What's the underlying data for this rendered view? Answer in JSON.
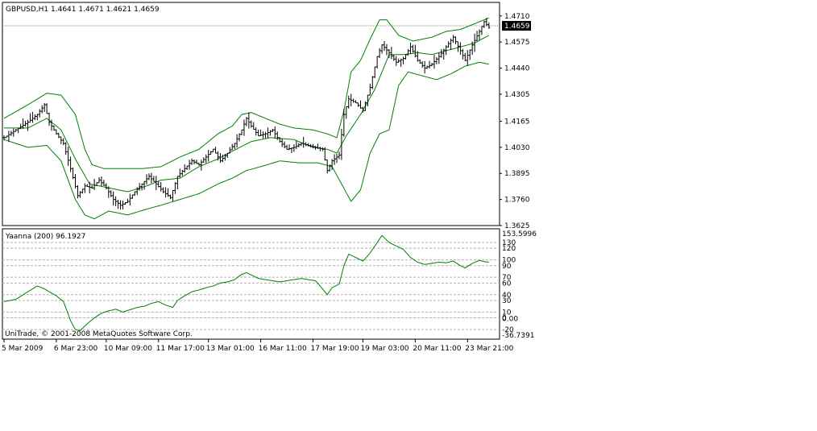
{
  "colors": {
    "background": "#ffffff",
    "bars": "#000000",
    "bollinger": "#008000",
    "indicator": "#008000",
    "grid_dotted": "#b0b0b0",
    "bid_line": "#909090",
    "price_tag_bg": "#000000",
    "price_tag_text": "#ffffff"
  },
  "header": {
    "main_info": "GBPUSD,H1  1.4641 1.4671 1.4621 1.4659",
    "indicator_info": "Yaanna (200) 96.1927",
    "copyright": "UniTrade, © 2001-2008 MetaQuotes Software Corp."
  },
  "chart_data": [
    {
      "type": "line",
      "symbol": "GBPUSD",
      "timeframe": "H1",
      "ohlc": {
        "open": 1.4641,
        "high": 1.4671,
        "low": 1.4621,
        "close": 1.4659
      },
      "current_price": 1.4659,
      "current_price_label": "1.4659",
      "ylim": [
        1.3625,
        1.478
      ],
      "y_tick_labels": [
        "1.4710",
        "1.4575",
        "1.4440",
        "1.4305",
        "1.4165",
        "1.4030",
        "1.3895",
        "1.3760",
        "1.3625"
      ],
      "y_tick_values": [
        1.471,
        1.4575,
        1.444,
        1.4305,
        1.4165,
        1.403,
        1.3895,
        1.376,
        1.3625
      ],
      "x_tick_labels": [
        "5 Mar 2009",
        "6 Mar 23:00",
        "10 Mar 09:00",
        "11 Mar 17:00",
        "13 Mar 01:00",
        "16 Mar 11:00",
        "17 Mar 19:00",
        "19 Mar 03:00",
        "20 Mar 11:00",
        "23 Mar 21:00"
      ],
      "price_anchors": [
        [
          0,
          1.408
        ],
        [
          5,
          1.412
        ],
        [
          10,
          1.416
        ],
        [
          14,
          1.42
        ],
        [
          17,
          1.425
        ],
        [
          19,
          1.416
        ],
        [
          22,
          1.41
        ],
        [
          25,
          1.405
        ],
        [
          28,
          1.392
        ],
        [
          31,
          1.378
        ],
        [
          34,
          1.383
        ],
        [
          37,
          1.382
        ],
        [
          40,
          1.386
        ],
        [
          43,
          1.382
        ],
        [
          46,
          1.376
        ],
        [
          49,
          1.373
        ],
        [
          52,
          1.375
        ],
        [
          55,
          1.38
        ],
        [
          58,
          1.384
        ],
        [
          61,
          1.388
        ],
        [
          64,
          1.384
        ],
        [
          67,
          1.38
        ],
        [
          70,
          1.377
        ],
        [
          73,
          1.388
        ],
        [
          76,
          1.392
        ],
        [
          79,
          1.396
        ],
        [
          82,
          1.394
        ],
        [
          85,
          1.398
        ],
        [
          88,
          1.402
        ],
        [
          91,
          1.396
        ],
        [
          94,
          1.4
        ],
        [
          97,
          1.405
        ],
        [
          100,
          1.412
        ],
        [
          102,
          1.418
        ],
        [
          104,
          1.414
        ],
        [
          107,
          1.409
        ],
        [
          110,
          1.41
        ],
        [
          113,
          1.412
        ],
        [
          116,
          1.406
        ],
        [
          119,
          1.402
        ],
        [
          122,
          1.403
        ],
        [
          125,
          1.405
        ],
        [
          128,
          1.404
        ],
        [
          131,
          1.403
        ],
        [
          134,
          1.402
        ],
        [
          136,
          1.391
        ],
        [
          138,
          1.396
        ],
        [
          141,
          1.399
        ],
        [
          143,
          1.42
        ],
        [
          145,
          1.428
        ],
        [
          148,
          1.426
        ],
        [
          151,
          1.422
        ],
        [
          154,
          1.434
        ],
        [
          157,
          1.45
        ],
        [
          159,
          1.456
        ],
        [
          162,
          1.452
        ],
        [
          165,
          1.447
        ],
        [
          168,
          1.449
        ],
        [
          171,
          1.455
        ],
        [
          174,
          1.448
        ],
        [
          177,
          1.444
        ],
        [
          180,
          1.446
        ],
        [
          183,
          1.45
        ],
        [
          186,
          1.455
        ],
        [
          189,
          1.46
        ],
        [
          192,
          1.453
        ],
        [
          194,
          1.448
        ],
        [
          197,
          1.456
        ],
        [
          200,
          1.463
        ],
        [
          202,
          1.468
        ],
        [
          204,
          1.465
        ]
      ],
      "bollinger": {
        "upper": [
          [
            0,
            1.418
          ],
          [
            10,
            1.425
          ],
          [
            18,
            1.431
          ],
          [
            24,
            1.43
          ],
          [
            30,
            1.42
          ],
          [
            34,
            1.402
          ],
          [
            37,
            1.394
          ],
          [
            42,
            1.392
          ],
          [
            50,
            1.392
          ],
          [
            58,
            1.392
          ],
          [
            66,
            1.393
          ],
          [
            74,
            1.398
          ],
          [
            82,
            1.402
          ],
          [
            90,
            1.41
          ],
          [
            96,
            1.414
          ],
          [
            100,
            1.42
          ],
          [
            104,
            1.421
          ],
          [
            110,
            1.418
          ],
          [
            116,
            1.415
          ],
          [
            122,
            1.413
          ],
          [
            130,
            1.412
          ],
          [
            136,
            1.41
          ],
          [
            140,
            1.408
          ],
          [
            143,
            1.422
          ],
          [
            146,
            1.442
          ],
          [
            150,
            1.448
          ],
          [
            154,
            1.459
          ],
          [
            158,
            1.469
          ],
          [
            161,
            1.469
          ],
          [
            166,
            1.461
          ],
          [
            172,
            1.458
          ],
          [
            180,
            1.46
          ],
          [
            186,
            1.463
          ],
          [
            192,
            1.464
          ],
          [
            198,
            1.467
          ],
          [
            204,
            1.47
          ]
        ],
        "middle": [
          [
            0,
            1.413
          ],
          [
            10,
            1.413
          ],
          [
            18,
            1.418
          ],
          [
            24,
            1.412
          ],
          [
            30,
            1.397
          ],
          [
            36,
            1.384
          ],
          [
            44,
            1.382
          ],
          [
            52,
            1.38
          ],
          [
            60,
            1.383
          ],
          [
            66,
            1.386
          ],
          [
            74,
            1.387
          ],
          [
            82,
            1.393
          ],
          [
            90,
            1.397
          ],
          [
            96,
            1.401
          ],
          [
            104,
            1.406
          ],
          [
            112,
            1.408
          ],
          [
            122,
            1.407
          ],
          [
            130,
            1.403
          ],
          [
            136,
            1.402
          ],
          [
            140,
            1.4
          ],
          [
            144,
            1.409
          ],
          [
            150,
            1.42
          ],
          [
            156,
            1.433
          ],
          [
            162,
            1.451
          ],
          [
            168,
            1.451
          ],
          [
            174,
            1.452
          ],
          [
            180,
            1.451
          ],
          [
            186,
            1.453
          ],
          [
            192,
            1.455
          ],
          [
            198,
            1.457
          ],
          [
            204,
            1.461
          ]
        ],
        "lower": [
          [
            0,
            1.407
          ],
          [
            10,
            1.403
          ],
          [
            18,
            1.404
          ],
          [
            24,
            1.396
          ],
          [
            30,
            1.376
          ],
          [
            34,
            1.368
          ],
          [
            38,
            1.366
          ],
          [
            44,
            1.37
          ],
          [
            52,
            1.368
          ],
          [
            60,
            1.371
          ],
          [
            66,
            1.373
          ],
          [
            74,
            1.376
          ],
          [
            82,
            1.379
          ],
          [
            90,
            1.384
          ],
          [
            96,
            1.387
          ],
          [
            102,
            1.391
          ],
          [
            108,
            1.393
          ],
          [
            116,
            1.396
          ],
          [
            124,
            1.395
          ],
          [
            132,
            1.395
          ],
          [
            138,
            1.393
          ],
          [
            142,
            1.384
          ],
          [
            146,
            1.375
          ],
          [
            150,
            1.381
          ],
          [
            154,
            1.4
          ],
          [
            158,
            1.41
          ],
          [
            162,
            1.412
          ],
          [
            166,
            1.435
          ],
          [
            170,
            1.442
          ],
          [
            176,
            1.44
          ],
          [
            182,
            1.438
          ],
          [
            188,
            1.441
          ],
          [
            194,
            1.445
          ],
          [
            200,
            1.447
          ],
          [
            204,
            1.446
          ]
        ]
      }
    },
    {
      "type": "line",
      "name": "Yaanna (200)",
      "current_value": 96.1927,
      "ylim": [
        -36.7391,
        153.5996
      ],
      "y_tick_labels": [
        "153.5996",
        "130",
        "120",
        "100",
        "90",
        "70",
        "60",
        "40",
        "30",
        "10",
        "0",
        "0.00",
        "-20",
        "-36.7391"
      ],
      "levels": [
        130,
        120,
        100,
        90,
        70,
        60,
        40,
        30,
        10,
        0,
        -20
      ],
      "anchors": [
        [
          0,
          28
        ],
        [
          5,
          32
        ],
        [
          10,
          45
        ],
        [
          14,
          55
        ],
        [
          17,
          50
        ],
        [
          19,
          45
        ],
        [
          22,
          38
        ],
        [
          25,
          28
        ],
        [
          28,
          -5
        ],
        [
          30,
          -20
        ],
        [
          32,
          -22
        ],
        [
          35,
          -10
        ],
        [
          38,
          0
        ],
        [
          41,
          8
        ],
        [
          44,
          12
        ],
        [
          47,
          15
        ],
        [
          50,
          10
        ],
        [
          53,
          14
        ],
        [
          56,
          18
        ],
        [
          59,
          20
        ],
        [
          62,
          25
        ],
        [
          65,
          28
        ],
        [
          68,
          22
        ],
        [
          71,
          18
        ],
        [
          73,
          30
        ],
        [
          76,
          38
        ],
        [
          79,
          45
        ],
        [
          82,
          48
        ],
        [
          85,
          52
        ],
        [
          88,
          55
        ],
        [
          91,
          60
        ],
        [
          94,
          62
        ],
        [
          97,
          66
        ],
        [
          100,
          75
        ],
        [
          102,
          78
        ],
        [
          104,
          74
        ],
        [
          107,
          68
        ],
        [
          110,
          66
        ],
        [
          113,
          64
        ],
        [
          116,
          62
        ],
        [
          119,
          64
        ],
        [
          122,
          66
        ],
        [
          125,
          68
        ],
        [
          128,
          66
        ],
        [
          131,
          64
        ],
        [
          134,
          50
        ],
        [
          136,
          40
        ],
        [
          138,
          52
        ],
        [
          141,
          58
        ],
        [
          143,
          90
        ],
        [
          145,
          110
        ],
        [
          148,
          104
        ],
        [
          151,
          98
        ],
        [
          154,
          112
        ],
        [
          157,
          130
        ],
        [
          159,
          142
        ],
        [
          162,
          130
        ],
        [
          165,
          124
        ],
        [
          168,
          118
        ],
        [
          171,
          104
        ],
        [
          174,
          96
        ],
        [
          177,
          92
        ],
        [
          180,
          94
        ],
        [
          183,
          96
        ],
        [
          186,
          95
        ],
        [
          189,
          98
        ],
        [
          192,
          90
        ],
        [
          194,
          86
        ],
        [
          197,
          94
        ],
        [
          200,
          99
        ],
        [
          202,
          97
        ],
        [
          204,
          96
        ]
      ]
    }
  ]
}
